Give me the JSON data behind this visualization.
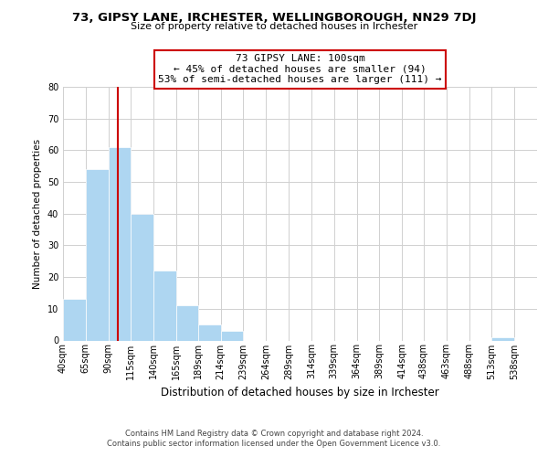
{
  "title1": "73, GIPSY LANE, IRCHESTER, WELLINGBOROUGH, NN29 7DJ",
  "title2": "Size of property relative to detached houses in Irchester",
  "xlabel": "Distribution of detached houses by size in Irchester",
  "ylabel": "Number of detached properties",
  "bin_labels": [
    "40sqm",
    "65sqm",
    "90sqm",
    "115sqm",
    "140sqm",
    "165sqm",
    "189sqm",
    "214sqm",
    "239sqm",
    "264sqm",
    "289sqm",
    "314sqm",
    "339sqm",
    "364sqm",
    "389sqm",
    "414sqm",
    "438sqm",
    "463sqm",
    "488sqm",
    "513sqm",
    "538sqm"
  ],
  "bin_left_edges": [
    40,
    65,
    90,
    115,
    140,
    165,
    189,
    214,
    239,
    264,
    289,
    314,
    339,
    364,
    389,
    414,
    438,
    463,
    488,
    513,
    538
  ],
  "bin_widths": [
    25,
    25,
    25,
    25,
    25,
    24,
    25,
    25,
    25,
    25,
    25,
    25,
    25,
    25,
    25,
    24,
    25,
    25,
    25,
    25,
    25
  ],
  "bar_heights": [
    13,
    54,
    61,
    40,
    22,
    11,
    5,
    3,
    0,
    0,
    0,
    0,
    0,
    0,
    0,
    0,
    0,
    0,
    0,
    1,
    0
  ],
  "bar_color": "#aed6f1",
  "bar_edgecolor": "white",
  "grid_color": "#d0d0d0",
  "vline_x": 100,
  "vline_color": "#cc0000",
  "annotation_line1": "73 GIPSY LANE: 100sqm",
  "annotation_line2": "← 45% of detached houses are smaller (94)",
  "annotation_line3": "53% of semi-detached houses are larger (111) →",
  "annotation_box_edgecolor": "#cc0000",
  "annotation_box_facecolor": "#ffffff",
  "ylim": [
    0,
    80
  ],
  "yticks": [
    0,
    10,
    20,
    30,
    40,
    50,
    60,
    70,
    80
  ],
  "xlim_min": 40,
  "xlim_max": 563,
  "footer_line1": "Contains HM Land Registry data © Crown copyright and database right 2024.",
  "footer_line2": "Contains public sector information licensed under the Open Government Licence v3.0.",
  "background_color": "#ffffff",
  "plot_background": "#ffffff",
  "title1_fontsize": 9.5,
  "title2_fontsize": 8.0,
  "ylabel_fontsize": 7.5,
  "xlabel_fontsize": 8.5,
  "tick_fontsize": 7.0,
  "annotation_fontsize": 8.0,
  "footer_fontsize": 6.0
}
